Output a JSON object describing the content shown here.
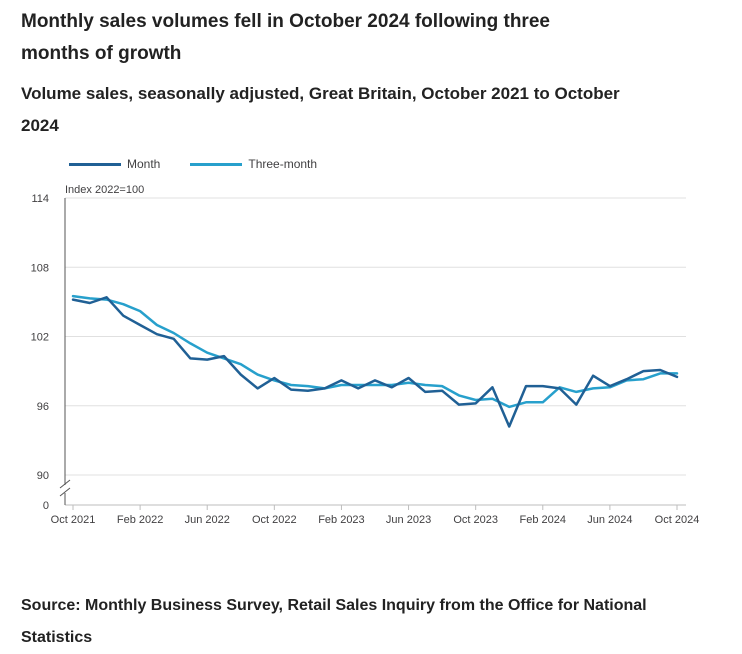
{
  "title": "Monthly sales volumes fell in October 2024 following three months of growth",
  "subtitle": "Volume sales, seasonally adjusted, Great Britain, October 2021 to October 2024",
  "source": "Source: Monthly Business Survey, Retail Sales Inquiry from the Office for National Statistics",
  "colors": {
    "month": "#206095",
    "three_month": "#27a0cc",
    "grid": "#e0e0e0",
    "axis": "#555555"
  },
  "legend": [
    {
      "name": "Month",
      "color": "#206095"
    },
    {
      "name": "Three-month",
      "color": "#27a0cc"
    }
  ],
  "chart_data": {
    "type": "line",
    "title": "Monthly sales volumes fell in October 2024 following three months of growth",
    "ylabel": "Index 2022=100",
    "xlabel": "",
    "ylim": [
      90,
      114
    ],
    "y_ticks": [
      "114",
      "108",
      "102",
      "96",
      "90"
    ],
    "y_break_label": "0",
    "x_tick_labels": [
      "Oct 2021",
      "Feb 2022",
      "Jun 2022",
      "Oct 2022",
      "Feb 2023",
      "Jun 2023",
      "Oct 2023",
      "Feb 2024",
      "Jun 2024",
      "Oct 2024"
    ],
    "x_tick_month_index": [
      0,
      4,
      8,
      12,
      16,
      20,
      24,
      28,
      32,
      36
    ],
    "series": [
      {
        "name": "Month",
        "values": [
          105.2,
          104.9,
          105.4,
          103.8,
          103.0,
          102.2,
          101.8,
          100.1,
          100.0,
          100.3,
          98.7,
          97.5,
          98.4,
          97.4,
          97.3,
          97.5,
          98.2,
          97.5,
          98.2,
          97.6,
          98.4,
          97.2,
          97.3,
          96.1,
          96.2,
          97.6,
          94.2,
          97.7,
          97.7,
          97.5,
          96.1,
          98.6,
          97.7,
          98.3,
          99.0,
          99.1,
          98.5
        ]
      },
      {
        "name": "Three-month",
        "values": [
          105.5,
          105.3,
          105.2,
          104.8,
          104.2,
          103.0,
          102.3,
          101.4,
          100.6,
          100.1,
          99.6,
          98.7,
          98.2,
          97.8,
          97.7,
          97.5,
          97.8,
          97.8,
          97.8,
          97.8,
          98.0,
          97.8,
          97.7,
          96.9,
          96.5,
          96.6,
          95.9,
          96.3,
          96.3,
          97.6,
          97.2,
          97.5,
          97.6,
          98.2,
          98.3,
          98.8,
          98.8
        ]
      }
    ]
  }
}
